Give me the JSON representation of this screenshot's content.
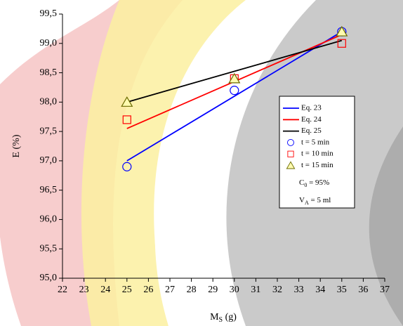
{
  "chart_data": {
    "type": "line",
    "x_label": {
      "main": "M",
      "sub": "S",
      "rest": " (g)"
    },
    "y_label": "E (%)",
    "xlim": [
      22,
      37
    ],
    "xticks": [
      22,
      23,
      24,
      25,
      26,
      27,
      28,
      29,
      30,
      31,
      32,
      33,
      34,
      35,
      36,
      37
    ],
    "ylim": [
      95,
      99.5
    ],
    "yticks": [
      {
        "value": 95,
        "label": "95,0"
      },
      {
        "value": 95.5,
        "label": "95,5"
      },
      {
        "value": 96,
        "label": "96,0"
      },
      {
        "value": 96.5,
        "label": "96,5"
      },
      {
        "value": 97,
        "label": "97,0"
      },
      {
        "value": 97.5,
        "label": "97,5"
      },
      {
        "value": 98,
        "label": "98,0"
      },
      {
        "value": 98.5,
        "label": "98,5"
      },
      {
        "value": 99,
        "label": "99,0"
      },
      {
        "value": 99.5,
        "label": "99,5"
      }
    ],
    "series": [
      {
        "name": "Eq. 23",
        "color": "#0000ff",
        "style": "line",
        "x": [
          25,
          35
        ],
        "values": [
          97.0,
          99.2
        ]
      },
      {
        "name": "Eq. 24",
        "color": "#ff0000",
        "style": "line",
        "x": [
          25,
          35
        ],
        "values": [
          97.55,
          99.15
        ]
      },
      {
        "name": "Eq. 25",
        "color": "#000000",
        "style": "line",
        "x": [
          25,
          35
        ],
        "values": [
          98.0,
          99.05
        ]
      },
      {
        "name": "t = 5 min",
        "color": "#0000ff",
        "style": "circle",
        "x": [
          25,
          30,
          35
        ],
        "values": [
          96.9,
          98.2,
          99.2
        ]
      },
      {
        "name": "t = 10 min",
        "color": "#ff0000",
        "style": "square",
        "x": [
          25,
          30,
          35
        ],
        "values": [
          97.7,
          98.4,
          99.0
        ]
      },
      {
        "name": "t = 15 min",
        "color": "#6b6b00",
        "style": "triangle",
        "x": [
          25,
          30,
          35
        ],
        "values": [
          98.0,
          98.4,
          99.2
        ]
      }
    ],
    "annotations": [
      {
        "main": "C",
        "sub": "0",
        "rest": " = 95%"
      },
      {
        "main": "V",
        "sub": "A",
        "rest": " = 5 ml"
      }
    ]
  }
}
